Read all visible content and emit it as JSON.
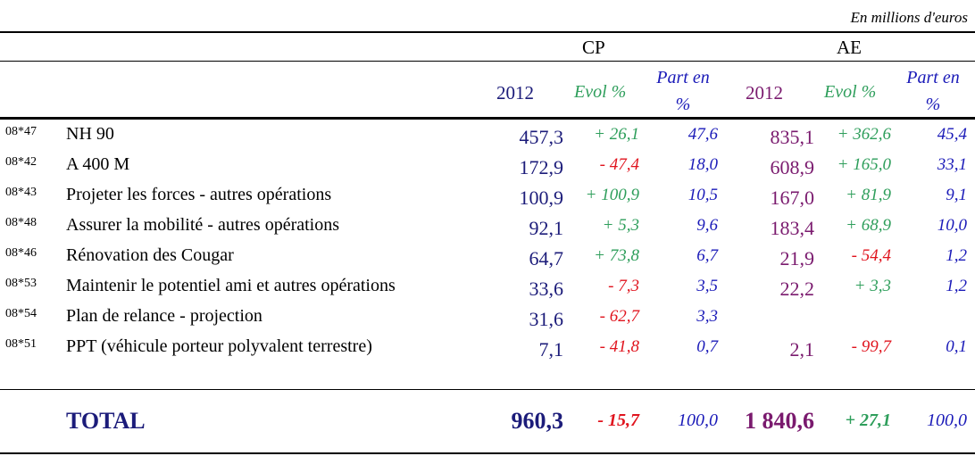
{
  "unit_note": "En millions d'euros",
  "groups": {
    "cp": "CP",
    "ae": "AE"
  },
  "headers": {
    "cp_year": "2012",
    "cp_evol": "Evol %",
    "cp_part_1": "Part en",
    "cp_part_2": "%",
    "ae_year": "2012",
    "ae_evol": "Evol %",
    "ae_part_1": "Part en",
    "ae_part_2": "%"
  },
  "rows": [
    {
      "code": "08*47",
      "label": "NH 90",
      "cp": "457,3",
      "cp_evol": "+ 26,1",
      "cp_evol_sign": "pos",
      "cp_part": "47,6",
      "ae": "835,1",
      "ae_evol": "+ 362,6",
      "ae_evol_sign": "pos",
      "ae_part": "45,4"
    },
    {
      "code": "08*42",
      "label": "A  400 M",
      "cp": "172,9",
      "cp_evol": "- 47,4",
      "cp_evol_sign": "neg",
      "cp_part": "18,0",
      "ae": "608,9",
      "ae_evol": "+ 165,0",
      "ae_evol_sign": "pos",
      "ae_part": "33,1"
    },
    {
      "code": "08*43",
      "label": "Projeter les forces - autres opérations",
      "cp": "100,9",
      "cp_evol": "+ 100,9",
      "cp_evol_sign": "pos",
      "cp_part": "10,5",
      "ae": "167,0",
      "ae_evol": "+ 81,9",
      "ae_evol_sign": "pos",
      "ae_part": "9,1"
    },
    {
      "code": "08*48",
      "label": "Assurer la mobilité - autres opérations",
      "cp": "92,1",
      "cp_evol": "+ 5,3",
      "cp_evol_sign": "pos",
      "cp_part": "9,6",
      "ae": "183,4",
      "ae_evol": "+ 68,9",
      "ae_evol_sign": "pos",
      "ae_part": "10,0"
    },
    {
      "code": "08*46",
      "label": "Rénovation des Cougar",
      "cp": "64,7",
      "cp_evol": "+ 73,8",
      "cp_evol_sign": "pos",
      "cp_part": "6,7",
      "ae": "21,9",
      "ae_evol": "- 54,4",
      "ae_evol_sign": "neg",
      "ae_part": "1,2"
    },
    {
      "code": "08*53",
      "label": "Maintenir le potentiel ami et autres opérations",
      "cp": "33,6",
      "cp_evol": "- 7,3",
      "cp_evol_sign": "neg",
      "cp_part": "3,5",
      "ae": "22,2",
      "ae_evol": "+ 3,3",
      "ae_evol_sign": "pos",
      "ae_part": "1,2"
    },
    {
      "code": "08*54",
      "label": "Plan de relance - projection",
      "cp": "31,6",
      "cp_evol": "- 62,7",
      "cp_evol_sign": "neg",
      "cp_part": "3,3",
      "ae": "",
      "ae_evol": "",
      "ae_evol_sign": "pos",
      "ae_part": ""
    },
    {
      "code": "08*51",
      "label": "PPT (véhicule porteur polyvalent terrestre)",
      "cp": "7,1",
      "cp_evol": "- 41,8",
      "cp_evol_sign": "neg",
      "cp_part": "0,7",
      "ae": "2,1",
      "ae_evol": "- 99,7",
      "ae_evol_sign": "neg",
      "ae_part": "0,1"
    }
  ],
  "total": {
    "label": "TOTAL",
    "cp": "960,3",
    "cp_evol": "- 15,7",
    "cp_part": "100,0",
    "ae": "1 840,6",
    "ae_evol": "+ 27,1",
    "ae_part": "100,0"
  },
  "colors": {
    "cp_value": "#1c1c7a",
    "ae_value": "#7a1a6e",
    "positive": "#2e9e5b",
    "negative": "#e0141e",
    "part": "#1a1ab8"
  }
}
